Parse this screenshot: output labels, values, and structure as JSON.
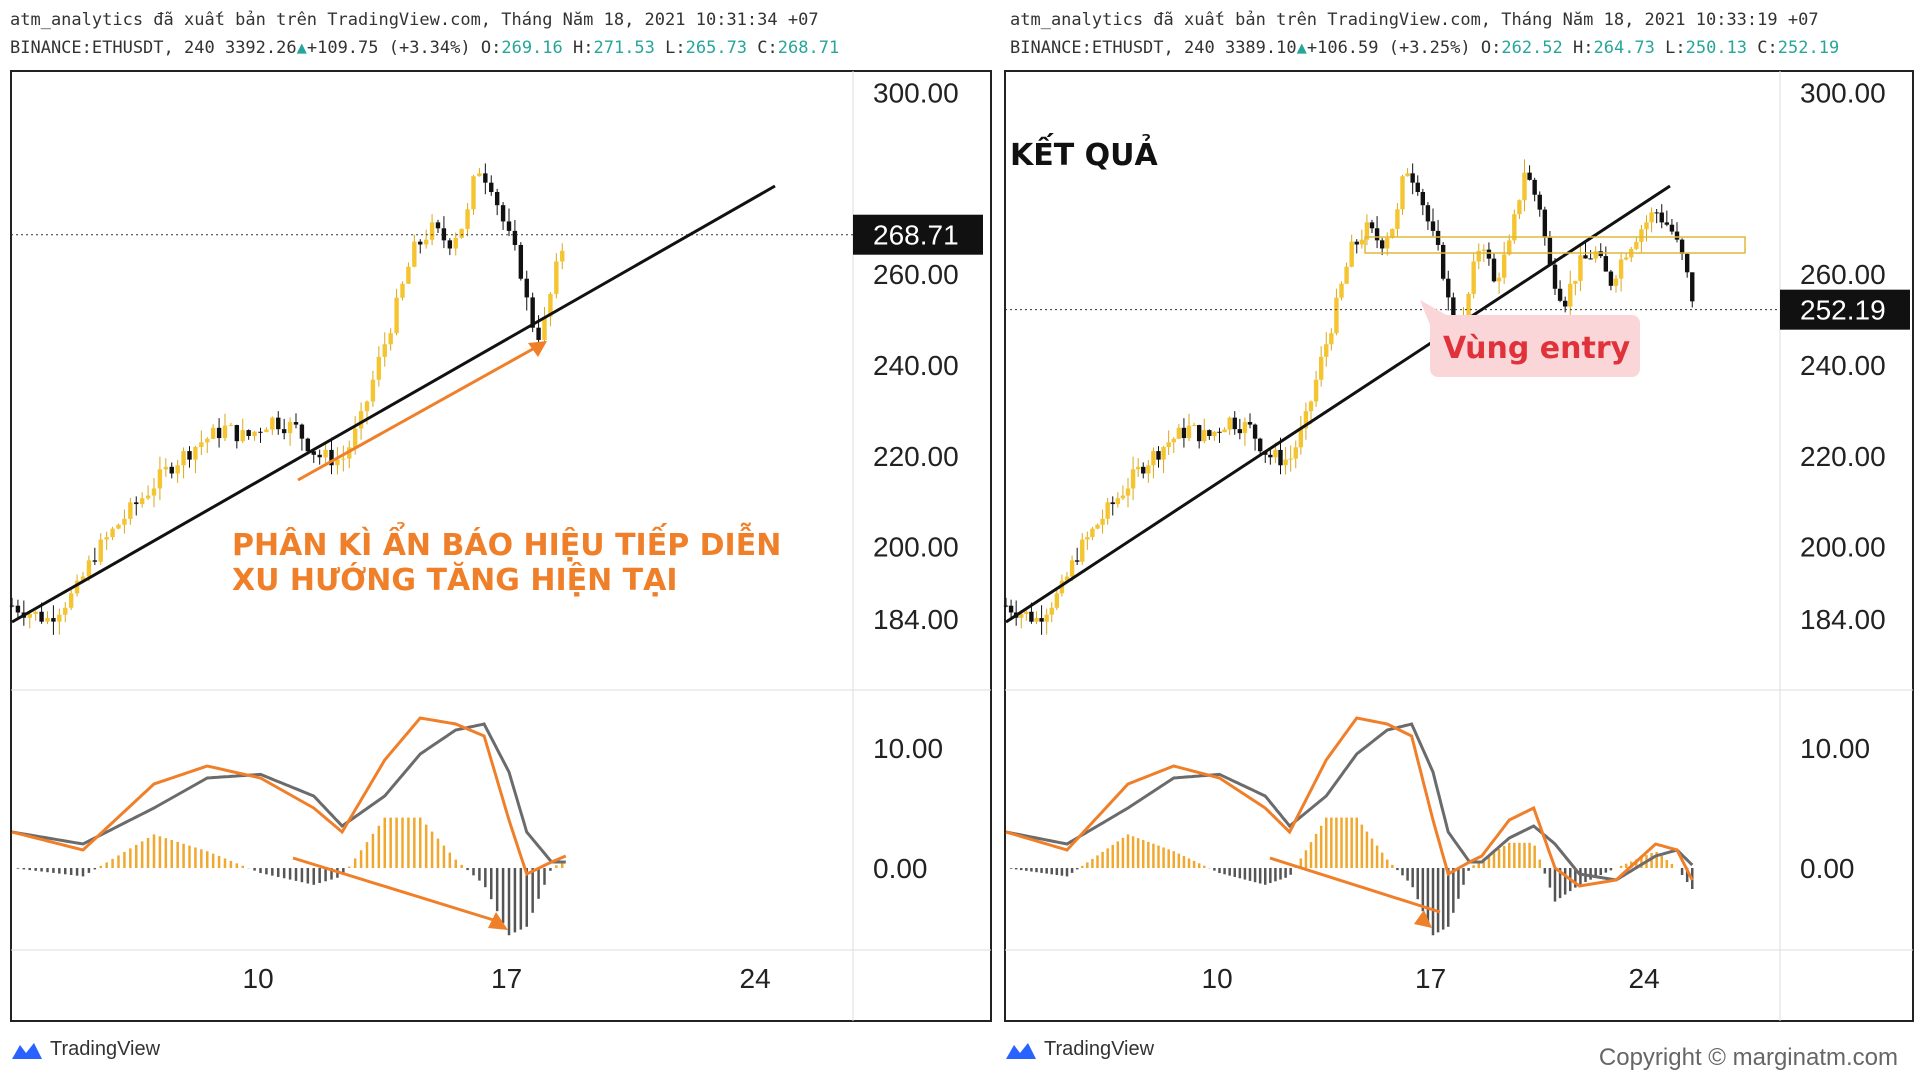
{
  "panels": [
    {
      "header1": "atm_analytics đã xuất bản trên TradingView.com, Tháng Năm 18, 2021 10:31:34 +07",
      "symbol": "BINANCE:ETHUSDT, 240",
      "last": "3392.26",
      "change": "+109.75 (+3.34%)",
      "o": "269.16",
      "h": "271.53",
      "l": "265.73",
      "c": "268.71",
      "price_label": "268.71",
      "annotation_line1": "PHÂN KÌ ẨN BÁO HIỆU TIẾP DIỄN",
      "annotation_line2": "XU HƯỚNG TĂNG HIỆN TẠI",
      "heading": "",
      "entry_label": ""
    },
    {
      "header1": "atm_analytics đã xuất bản trên TradingView.com, Tháng Năm 18, 2021 10:33:19 +07",
      "symbol": "BINANCE:ETHUSDT, 240",
      "last": "3389.10",
      "change": "+106.59 (+3.25%)",
      "o": "262.52",
      "h": "264.73",
      "l": "250.13",
      "c": "252.19",
      "price_label": "252.19",
      "annotation_line1": "",
      "annotation_line2": "",
      "heading": "KẾT QUẢ",
      "entry_label": "Vùng entry"
    }
  ],
  "axis": {
    "price_ticks": [
      "300.00",
      "260.00",
      "240.00",
      "220.00",
      "200.00",
      "184.00"
    ],
    "macd_ticks": [
      "10.00",
      "0.00"
    ],
    "date_ticks": [
      "10",
      "17",
      "24"
    ]
  },
  "brand": "TradingView",
  "copyright": "Copyright © marginatm.com",
  "colors": {
    "candle_up": "#f5c431",
    "candle_down": "#111111",
    "macd_line": "#f07f2a",
    "signal_line": "#6b6b6b",
    "hist_pos": "#f0a830",
    "hist_neg": "#555555",
    "annotation": "#f07f2a",
    "trendline": "#111111",
    "entry_bg": "#fbd6d8",
    "entry_text": "#e0323a"
  },
  "chart_data": [
    {
      "type": "candlestick",
      "title": "BINANCE:ETHUSDT, 240",
      "x_unit": "day (May 2021)",
      "ylim": [
        175,
        305
      ],
      "date_range": [
        3,
        27
      ],
      "close_path": [
        {
          "d": 3.0,
          "c": 187
        },
        {
          "d": 4.0,
          "c": 184
        },
        {
          "d": 4.8,
          "c": 190
        },
        {
          "d": 5.3,
          "c": 198
        },
        {
          "d": 6.0,
          "c": 205
        },
        {
          "d": 6.8,
          "c": 212
        },
        {
          "d": 7.5,
          "c": 218
        },
        {
          "d": 8.3,
          "c": 223
        },
        {
          "d": 9.0,
          "c": 226
        },
        {
          "d": 9.6,
          "c": 224
        },
        {
          "d": 10.3,
          "c": 228
        },
        {
          "d": 11.0,
          "c": 226
        },
        {
          "d": 11.6,
          "c": 220
        },
        {
          "d": 12.3,
          "c": 219
        },
        {
          "d": 12.8,
          "c": 227
        },
        {
          "d": 13.3,
          "c": 240
        },
        {
          "d": 13.8,
          "c": 252
        },
        {
          "d": 14.3,
          "c": 265
        },
        {
          "d": 14.8,
          "c": 270
        },
        {
          "d": 15.3,
          "c": 267
        },
        {
          "d": 15.8,
          "c": 272
        },
        {
          "d": 16.1,
          "c": 284
        },
        {
          "d": 16.5,
          "c": 280
        },
        {
          "d": 16.9,
          "c": 270
        },
        {
          "d": 17.3,
          "c": 262
        },
        {
          "d": 17.6,
          "c": 250
        },
        {
          "d": 17.9,
          "c": 246
        },
        {
          "d": 18.3,
          "c": 260
        },
        {
          "d": 18.6,
          "c": 268.71
        }
      ],
      "close_path_continued": [
        {
          "d": 19.0,
          "c": 258
        },
        {
          "d": 19.5,
          "c": 266
        },
        {
          "d": 20.0,
          "c": 283
        },
        {
          "d": 20.5,
          "c": 275
        },
        {
          "d": 20.8,
          "c": 262
        },
        {
          "d": 21.3,
          "c": 254
        },
        {
          "d": 21.8,
          "c": 262
        },
        {
          "d": 22.3,
          "c": 265
        },
        {
          "d": 22.8,
          "c": 258
        },
        {
          "d": 23.3,
          "c": 265
        },
        {
          "d": 23.8,
          "c": 270
        },
        {
          "d": 24.3,
          "c": 274
        },
        {
          "d": 24.8,
          "c": 270
        },
        {
          "d": 25.2,
          "c": 263
        },
        {
          "d": 25.6,
          "c": 252.19
        }
      ],
      "macd_ylim": [
        -6,
        14
      ],
      "macd_path": [
        {
          "d": 3,
          "m": 3,
          "s": 3
        },
        {
          "d": 5,
          "m": 1.5,
          "s": 2
        },
        {
          "d": 7,
          "m": 7,
          "s": 5
        },
        {
          "d": 8.5,
          "m": 8.5,
          "s": 7.5
        },
        {
          "d": 10,
          "m": 7.5,
          "s": 7.8
        },
        {
          "d": 11.5,
          "m": 5,
          "s": 6
        },
        {
          "d": 12.3,
          "m": 3,
          "s": 3.5
        },
        {
          "d": 13.5,
          "m": 9,
          "s": 6
        },
        {
          "d": 14.5,
          "m": 12.5,
          "s": 9.5
        },
        {
          "d": 15.5,
          "m": 12,
          "s": 11.5
        },
        {
          "d": 16.3,
          "m": 11,
          "s": 12
        },
        {
          "d": 17.0,
          "m": 4,
          "s": 8
        },
        {
          "d": 17.5,
          "m": -0.5,
          "s": 3
        },
        {
          "d": 18.2,
          "m": 0.5,
          "s": 0.5
        },
        {
          "d": 18.6,
          "m": 1.0,
          "s": 0.5
        },
        {
          "d": 19.5,
          "m": 4,
          "s": 2.5
        },
        {
          "d": 20.3,
          "m": 5,
          "s": 3.5
        },
        {
          "d": 21.0,
          "m": 0,
          "s": 2
        },
        {
          "d": 21.8,
          "m": -1.5,
          "s": -0.5
        },
        {
          "d": 23.0,
          "m": -1,
          "s": -1
        },
        {
          "d": 24.3,
          "m": 2,
          "s": 1
        },
        {
          "d": 25.0,
          "m": 1.5,
          "s": 1.5
        },
        {
          "d": 25.6,
          "m": -1.5,
          "s": 0
        }
      ]
    }
  ]
}
